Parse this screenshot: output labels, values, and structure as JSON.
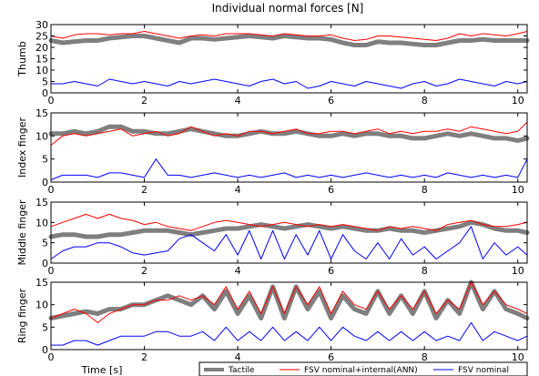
{
  "chart_data": {
    "type": "line",
    "title": "Individual normal forces [N]",
    "xlabel": "Time [s]",
    "xlim": [
      0,
      10.2
    ],
    "xticks": [
      "0",
      "2",
      "4",
      "6",
      "8",
      "10"
    ],
    "legend": {
      "placement": "bottom-right",
      "entries": [
        "Tactile",
        "FSV nominal+internal(ANN)",
        "FSV nominal"
      ]
    },
    "colors": {
      "tactile": "#7f7f7f",
      "ann": "#ff0000",
      "nominal": "#0000ff"
    },
    "panels": [
      {
        "ylabel": "Thumb",
        "ylim": [
          0,
          30
        ],
        "yticks": [
          "0",
          "5",
          "10",
          "15",
          "20",
          "25",
          "30"
        ],
        "series": {
          "x": [
            0,
            0.25,
            0.5,
            0.75,
            1,
            1.25,
            1.5,
            1.75,
            2,
            2.25,
            2.5,
            2.75,
            3,
            3.25,
            3.5,
            3.75,
            4,
            4.25,
            4.5,
            4.75,
            5,
            5.25,
            5.5,
            5.75,
            6,
            6.25,
            6.5,
            6.75,
            7,
            7.25,
            7.5,
            7.75,
            8,
            8.25,
            8.5,
            8.75,
            9,
            9.25,
            9.5,
            9.75,
            10,
            10.2
          ],
          "tactile": [
            23,
            22,
            22.5,
            23,
            23,
            24,
            24.5,
            25,
            25,
            24,
            23,
            22,
            24,
            24,
            23.5,
            24,
            24.5,
            25,
            24.5,
            24,
            25,
            24.5,
            24,
            24,
            23.5,
            22,
            21,
            21,
            22.5,
            22,
            22,
            21.5,
            21,
            21,
            22,
            23,
            23,
            23.5,
            23,
            23,
            23,
            23
          ],
          "ann": [
            25,
            24,
            25.5,
            26,
            26,
            25.5,
            26,
            26,
            27,
            26,
            25,
            24,
            25,
            25.5,
            25,
            26,
            26,
            26,
            25.5,
            25,
            26,
            25.5,
            25,
            25,
            25.5,
            24,
            23,
            23.5,
            25,
            25,
            24.5,
            24,
            23.5,
            23,
            24,
            26,
            25,
            26,
            25.5,
            25,
            26,
            27
          ],
          "nominal": [
            4,
            4,
            5,
            4,
            3,
            6,
            5,
            4,
            5,
            4,
            3,
            5,
            4,
            5,
            6,
            5,
            4,
            3,
            5,
            6,
            4,
            5,
            2,
            3,
            5,
            4,
            3,
            5,
            4,
            3,
            2,
            4,
            5,
            3,
            4,
            6,
            5,
            4,
            3,
            5,
            4,
            5
          ]
        }
      },
      {
        "ylabel": "Index finger",
        "ylim": [
          0,
          15
        ],
        "yticks": [
          "0",
          "5",
          "10",
          "15"
        ],
        "series": {
          "x": [
            0,
            0.25,
            0.5,
            0.75,
            1,
            1.25,
            1.5,
            1.75,
            2,
            2.25,
            2.5,
            2.75,
            3,
            3.25,
            3.5,
            3.75,
            4,
            4.25,
            4.5,
            4.75,
            5,
            5.25,
            5.5,
            5.75,
            6,
            6.25,
            6.5,
            6.75,
            7,
            7.25,
            7.5,
            7.75,
            8,
            8.25,
            8.5,
            8.75,
            9,
            9.25,
            9.5,
            9.75,
            10,
            10.2
          ],
          "tactile": [
            10.5,
            10.5,
            11,
            10.5,
            11,
            12,
            12,
            11,
            11,
            10.5,
            10.5,
            11,
            11.5,
            11,
            10.5,
            10,
            10,
            10.5,
            11,
            10.5,
            10.5,
            11,
            10.5,
            10,
            10,
            10.5,
            10,
            10.5,
            10.5,
            10,
            10,
            9.5,
            9.5,
            10,
            10.5,
            10,
            10.5,
            10,
            9.5,
            9.5,
            9,
            9.5
          ],
          "ann": [
            8,
            10,
            10.5,
            10,
            10.5,
            11,
            11.5,
            10,
            10.5,
            11,
            10,
            10.5,
            12,
            11,
            10,
            10.5,
            10,
            11,
            11,
            10.5,
            11,
            11.5,
            10.5,
            10.5,
            11,
            11,
            10.5,
            11,
            11.5,
            10.5,
            11,
            10.5,
            11,
            11,
            11.5,
            11,
            12,
            11.5,
            11,
            10.5,
            11,
            13
          ],
          "nominal": [
            0.5,
            1.5,
            1.5,
            1.5,
            1,
            2,
            2,
            1.5,
            1,
            5,
            1.5,
            1.5,
            1,
            1.5,
            2,
            1.5,
            1,
            1.5,
            1,
            1.5,
            2,
            1,
            1.5,
            1,
            1.5,
            1,
            1.5,
            2,
            1.5,
            1,
            1.5,
            1,
            1.5,
            1,
            2,
            1.5,
            1,
            1.5,
            1,
            1.5,
            1,
            5
          ]
        }
      },
      {
        "ylabel": "Middle finger",
        "ylim": [
          0,
          15
        ],
        "yticks": [
          "0",
          "5",
          "10",
          "15"
        ],
        "series": {
          "x": [
            0,
            0.25,
            0.5,
            0.75,
            1,
            1.25,
            1.5,
            1.75,
            2,
            2.25,
            2.5,
            2.75,
            3,
            3.25,
            3.5,
            3.75,
            4,
            4.25,
            4.5,
            4.75,
            5,
            5.25,
            5.5,
            5.75,
            6,
            6.25,
            6.5,
            6.75,
            7,
            7.25,
            7.5,
            7.75,
            8,
            8.25,
            8.5,
            8.75,
            9,
            9.25,
            9.5,
            9.75,
            10,
            10.2
          ],
          "tactile": [
            6.5,
            7,
            7,
            6.5,
            6.5,
            7,
            7,
            7.5,
            8,
            8,
            8,
            7.5,
            7,
            7.5,
            8,
            8.5,
            8.5,
            9,
            9.5,
            9,
            8.5,
            9,
            9.5,
            9,
            8.5,
            9,
            8.5,
            8,
            8,
            8.5,
            8,
            8,
            7.5,
            8,
            8.5,
            9,
            10,
            9.5,
            8.5,
            8,
            8,
            7.5
          ],
          "ann": [
            9,
            10,
            11,
            12,
            11,
            12,
            11,
            10.5,
            9.5,
            10,
            9,
            8.5,
            8,
            9,
            10,
            10.5,
            10,
            9.5,
            9,
            9.5,
            10,
            9.5,
            9,
            9.5,
            9,
            9.5,
            9,
            8.5,
            8,
            9,
            8.5,
            9,
            8.5,
            8,
            9.5,
            10,
            10.5,
            9.5,
            9,
            9,
            9.5,
            10
          ],
          "nominal": [
            1,
            3,
            4,
            4,
            5,
            5,
            4,
            2.5,
            2,
            2.5,
            3,
            6,
            7,
            5,
            3,
            7,
            2,
            8,
            1,
            8,
            1,
            7,
            2,
            8,
            1,
            7,
            3,
            1,
            5,
            1,
            6,
            2,
            4,
            1,
            3,
            5,
            9,
            1,
            5,
            2,
            4,
            2
          ]
        }
      },
      {
        "ylabel": "Ring finger",
        "ylim": [
          0,
          15
        ],
        "yticks": [
          "0",
          "5",
          "10",
          "15"
        ],
        "series": {
          "x": [
            0,
            0.25,
            0.5,
            0.75,
            1,
            1.25,
            1.5,
            1.75,
            2,
            2.25,
            2.5,
            2.75,
            3,
            3.25,
            3.5,
            3.75,
            4,
            4.25,
            4.5,
            4.75,
            5,
            5.25,
            5.5,
            5.75,
            6,
            6.25,
            6.5,
            6.75,
            7,
            7.25,
            7.5,
            7.75,
            8,
            8.25,
            8.5,
            8.75,
            9,
            9.25,
            9.5,
            9.75,
            10,
            10.2
          ],
          "tactile": [
            7,
            7.5,
            8,
            8.5,
            8,
            9,
            9,
            10,
            10,
            11,
            12,
            11,
            10,
            12,
            9,
            13,
            8,
            12,
            7,
            14,
            7,
            14,
            9,
            13,
            7,
            12,
            9,
            8,
            13,
            8,
            12,
            8,
            13,
            7,
            11,
            8,
            15,
            9,
            13,
            9,
            8,
            7
          ],
          "ann": [
            7,
            8,
            9,
            8,
            6,
            8,
            9,
            10,
            10,
            11,
            11,
            12,
            11,
            12,
            10,
            14,
            9,
            13,
            8,
            14,
            8,
            14,
            10,
            14,
            8,
            13,
            10,
            9,
            13,
            9,
            12,
            9,
            13,
            8,
            11,
            9,
            15,
            10,
            13,
            10,
            9,
            8
          ],
          "nominal": [
            1,
            1,
            2,
            2,
            1,
            2,
            3,
            3,
            3,
            4,
            4,
            3,
            3,
            4,
            2,
            5,
            2,
            4,
            2,
            5,
            2,
            4,
            2,
            5,
            2,
            5,
            3,
            2,
            4,
            2,
            4,
            2,
            4,
            2,
            3,
            2,
            6,
            2,
            4,
            3,
            2,
            3
          ]
        }
      }
    ]
  }
}
